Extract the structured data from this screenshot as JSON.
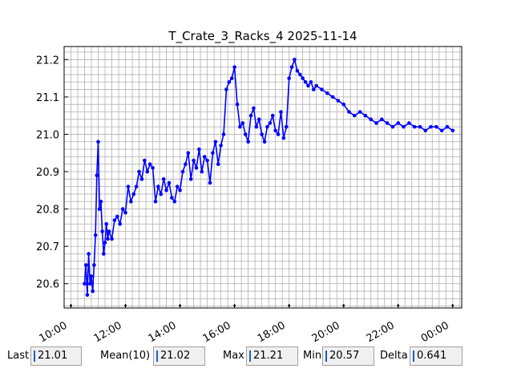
{
  "chart_data": {
    "type": "line",
    "title": "T_Crate_3_Racks_4 2025-11-14",
    "xlabel": "",
    "ylabel": "",
    "x_range_hours": [
      9.75,
      24.33
    ],
    "ylim": [
      20.535,
      21.235
    ],
    "grid": true,
    "line_color": "#0000ff",
    "x_tick_labels": [
      "10:00",
      "12:00",
      "14:00",
      "16:00",
      "18:00",
      "20:00",
      "22:00",
      "00:00"
    ],
    "x_tick_hours": [
      10,
      12,
      14,
      16,
      18,
      20,
      22,
      24
    ],
    "y_ticks": [
      20.6,
      20.7,
      20.8,
      20.9,
      21.0,
      21.1,
      21.2
    ],
    "series": [
      {
        "x": [
          10.5,
          10.55,
          10.6,
          10.65,
          10.7,
          10.75,
          10.8,
          10.85,
          10.9,
          10.95,
          11.0,
          11.05,
          11.1,
          11.15,
          11.2,
          11.25,
          11.3,
          11.35,
          11.4,
          11.5,
          11.6,
          11.7,
          11.8,
          11.9,
          12.0,
          12.1,
          12.2,
          12.3,
          12.4,
          12.5,
          12.6,
          12.7,
          12.8,
          12.9,
          13.0,
          13.1,
          13.2,
          13.3,
          13.4,
          13.5,
          13.6,
          13.7,
          13.8,
          13.9,
          14.0,
          14.1,
          14.2,
          14.3,
          14.4,
          14.5,
          14.6,
          14.7,
          14.8,
          14.9,
          15.0,
          15.1,
          15.2,
          15.3,
          15.4,
          15.5,
          15.6,
          15.7,
          15.8,
          15.9,
          16.0,
          16.1,
          16.2,
          16.3,
          16.4,
          16.5,
          16.6,
          16.7,
          16.8,
          16.9,
          17.0,
          17.1,
          17.2,
          17.3,
          17.4,
          17.5,
          17.6,
          17.7,
          17.8,
          17.9,
          18.0,
          18.1,
          18.2,
          18.3,
          18.4,
          18.5,
          18.6,
          18.7,
          18.8,
          18.9,
          19.0,
          19.2,
          19.4,
          19.6,
          19.8,
          20.0,
          20.2,
          20.4,
          20.6,
          20.8,
          21.0,
          21.2,
          21.4,
          21.6,
          21.8,
          22.0,
          22.2,
          22.4,
          22.6,
          22.8,
          23.0,
          23.2,
          23.4,
          23.6,
          23.8,
          24.0
        ],
        "values": [
          20.6,
          20.65,
          20.57,
          20.68,
          20.6,
          20.62,
          20.58,
          20.65,
          20.73,
          20.89,
          20.98,
          20.8,
          20.82,
          20.74,
          20.68,
          20.71,
          20.76,
          20.72,
          20.74,
          20.72,
          20.77,
          20.78,
          20.76,
          20.8,
          20.79,
          20.86,
          20.82,
          20.84,
          20.86,
          20.9,
          20.88,
          20.93,
          20.9,
          20.92,
          20.91,
          20.82,
          20.86,
          20.84,
          20.88,
          20.85,
          20.87,
          20.83,
          20.82,
          20.86,
          20.85,
          20.9,
          20.92,
          20.95,
          20.88,
          20.93,
          20.91,
          20.96,
          20.9,
          20.94,
          20.93,
          20.87,
          20.95,
          20.98,
          20.92,
          20.97,
          21.0,
          21.12,
          21.14,
          21.15,
          21.18,
          21.08,
          21.02,
          21.03,
          21.0,
          20.98,
          21.05,
          21.07,
          21.02,
          21.04,
          21.0,
          20.98,
          21.02,
          21.03,
          21.05,
          21.01,
          21.0,
          21.06,
          20.99,
          21.02,
          21.15,
          21.18,
          21.2,
          21.17,
          21.16,
          21.15,
          21.14,
          21.13,
          21.14,
          21.12,
          21.13,
          21.12,
          21.11,
          21.1,
          21.09,
          21.08,
          21.06,
          21.05,
          21.06,
          21.05,
          21.04,
          21.03,
          21.04,
          21.03,
          21.02,
          21.03,
          21.02,
          21.03,
          21.02,
          21.02,
          21.01,
          21.02,
          21.02,
          21.01,
          21.02,
          21.01
        ]
      }
    ]
  },
  "stats": {
    "last_label": "Last",
    "last_value": "21.01",
    "mean_label": "Mean(10)",
    "mean_value": "21.02",
    "max_label": "Max",
    "max_value": "21.21",
    "min_label": "Min",
    "min_value": "20.57",
    "delta_label": "Delta",
    "delta_value": "0.641"
  }
}
